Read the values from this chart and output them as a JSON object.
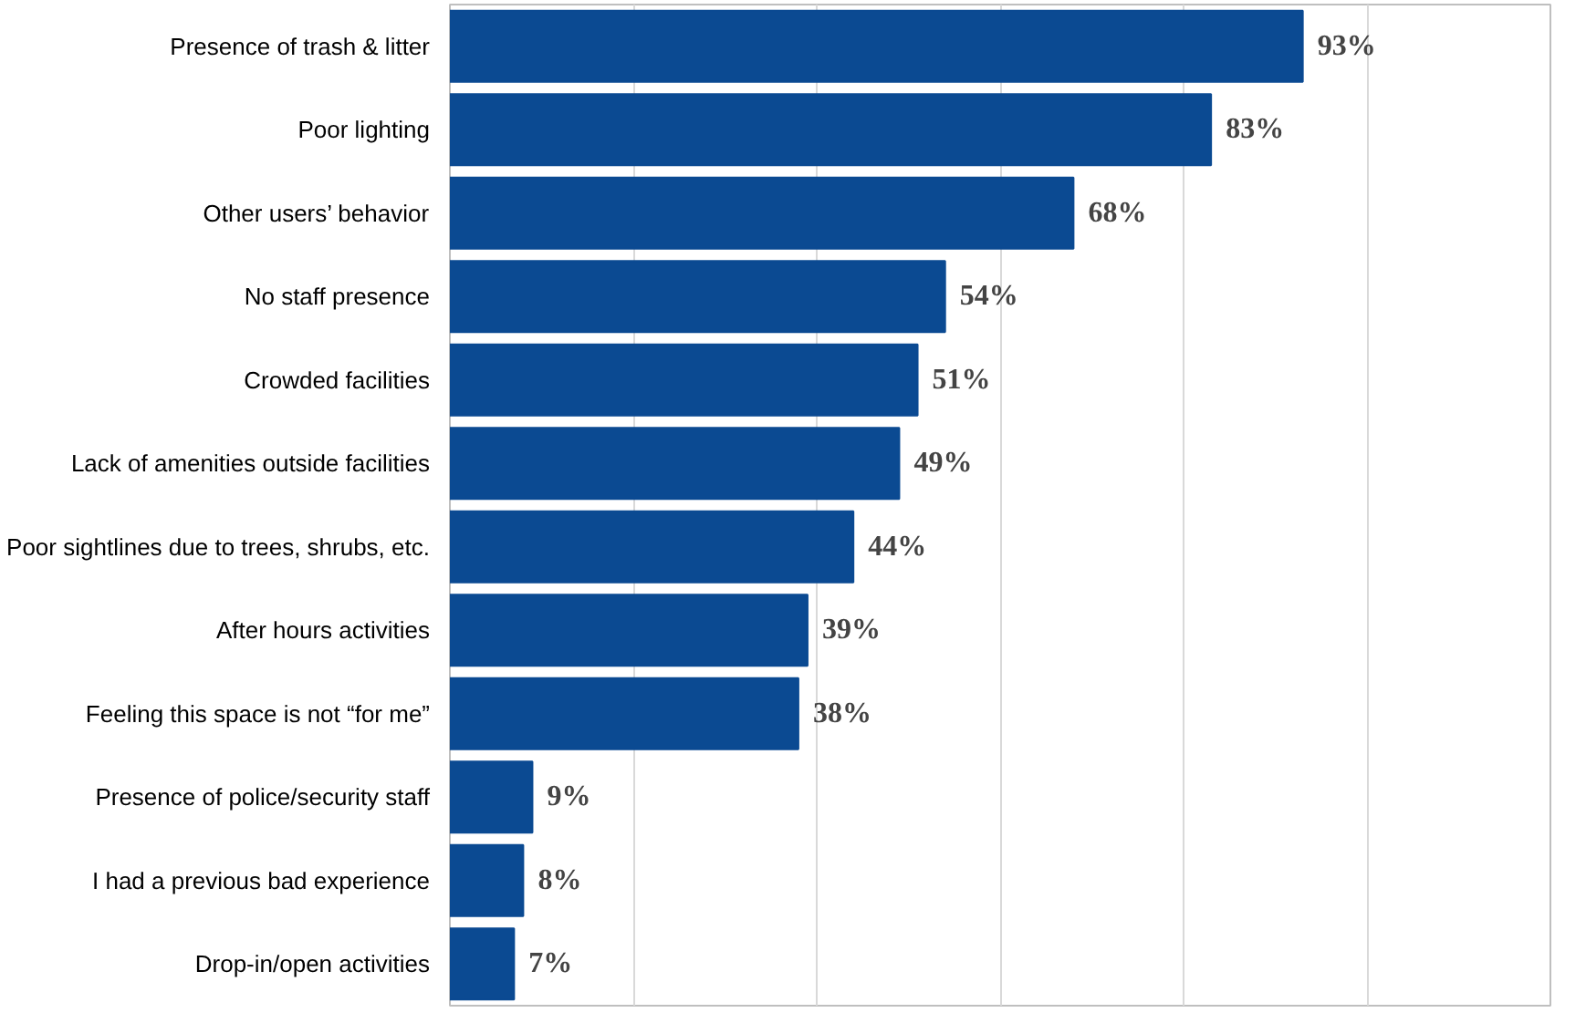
{
  "chart_data": {
    "type": "bar",
    "orientation": "horizontal",
    "categories": [
      "Presence of trash & litter",
      "Poor lighting",
      "Other users’ behavior",
      "No staff presence",
      "Crowded facilities",
      "Lack of amenities outside facilities",
      "Poor sightlines due to trees, shrubs, etc.",
      "After hours activities",
      "Feeling this space is not “for me”",
      "Presence of police/security staff",
      "I had a previous bad experience",
      "Drop-in/open activities"
    ],
    "values": [
      93,
      83,
      68,
      54,
      51,
      49,
      44,
      39,
      38,
      9,
      8,
      7
    ],
    "value_labels": [
      "93%",
      "83%",
      "68%",
      "54%",
      "51%",
      "49%",
      "44%",
      "39%",
      "38%",
      "9%",
      "8%",
      "7%"
    ],
    "color": "#0b4a92",
    "xlim": [
      0,
      120
    ],
    "xticks": [
      {
        "value": 0,
        "label": null
      },
      {
        "value": 20,
        "label": null
      },
      {
        "value": 40,
        "label": null
      },
      {
        "value": 60,
        "label": null
      },
      {
        "value": 80,
        "label": null
      },
      {
        "value": 100,
        "label": null
      },
      {
        "value": 120,
        "label": null
      }
    ],
    "grid": "x",
    "tick_labels": "y"
  }
}
